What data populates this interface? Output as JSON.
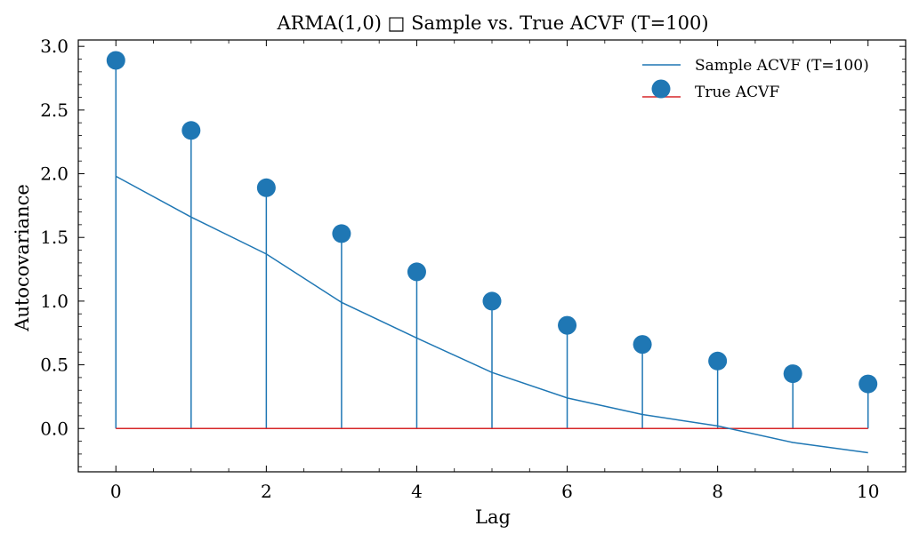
{
  "chart_data": {
    "type": "line",
    "title": "ARMA(1,0) □ Sample vs. True ACVF (T=100)",
    "xlabel": "Lag",
    "ylabel": "Autocovariance",
    "xlim": [
      -0.5,
      10.5
    ],
    "ylim": [
      -0.34,
      3.05
    ],
    "xticks": [
      0,
      2,
      4,
      6,
      8,
      10
    ],
    "xtick_labels": [
      "0",
      "2",
      "4",
      "6",
      "8",
      "10"
    ],
    "yticks": [
      0.0,
      0.5,
      1.0,
      1.5,
      2.0,
      2.5,
      3.0
    ],
    "ytick_labels": [
      "0.0",
      "0.5",
      "1.0",
      "1.5",
      "2.0",
      "2.5",
      "3.0"
    ],
    "x": [
      0,
      1,
      2,
      3,
      4,
      5,
      6,
      7,
      8,
      9,
      10
    ],
    "series": [
      {
        "name": "Sample ACVF (T=100)",
        "kind": "line",
        "color": "#1f77b4",
        "values": [
          1.98,
          1.66,
          1.37,
          0.99,
          0.71,
          0.44,
          0.24,
          0.11,
          0.02,
          -0.11,
          -0.19
        ]
      },
      {
        "name": "True ACVF",
        "kind": "stem",
        "marker_color": "#1f77b4",
        "baseline_color": "#d62728",
        "values": [
          2.89,
          2.34,
          1.89,
          1.53,
          1.23,
          1.0,
          0.81,
          0.66,
          0.53,
          0.43,
          0.35
        ]
      }
    ],
    "legend_position": "top-right",
    "grid": false
  }
}
